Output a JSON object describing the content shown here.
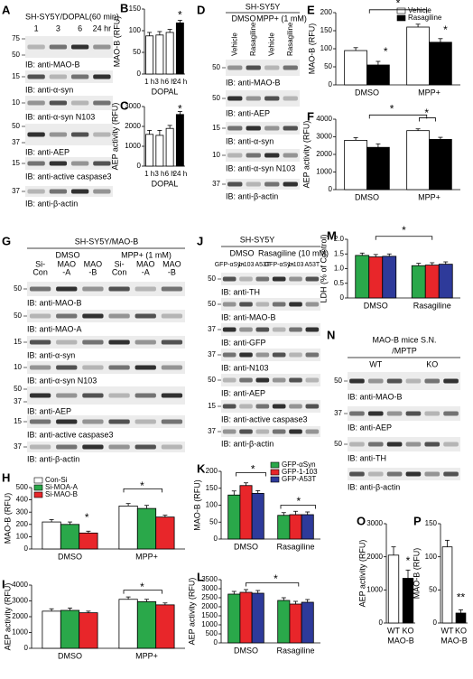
{
  "blots": [
    {
      "panel": "A",
      "header": [
        "SH-SY5Y/DOPAL(60 min)"
      ],
      "lanes": [
        "1",
        "3",
        "6",
        "24 hr"
      ],
      "rows": [
        {
          "markers": [
            75,
            50
          ],
          "label": "IB: anti-MAO-B"
        },
        {
          "markers": [
            15
          ],
          "label": "IB: anti-α-syn"
        },
        {
          "markers": [
            10
          ],
          "label": "IB: anti-α-syn N103"
        },
        {
          "markers": [
            50,
            37
          ],
          "label": "IB: anti-AEP"
        },
        {
          "markers": [
            15
          ],
          "label": "IB: anti-active caspase3"
        },
        {
          "markers": [
            37
          ],
          "label": "IB: anti-β-actin"
        }
      ]
    },
    {
      "panel": "D",
      "header": [
        "SH-SY5Y",
        "DMSO",
        "MPP+ (1 mM)"
      ],
      "lanes": [
        "Vehicle",
        "Rasagiline",
        "Vehicle",
        "Rasagiline"
      ],
      "rows": [
        {
          "markers": [
            50
          ],
          "label": "IB: anti-MAO-B"
        },
        {
          "markers": [
            50
          ],
          "label": "IB: anti-AEP"
        },
        {
          "markers": [
            15
          ],
          "label": "IB: anti-α-syn"
        },
        {
          "markers": [
            10
          ],
          "label": "IB: anti-α-syn N103"
        },
        {
          "markers": [
            37
          ],
          "label": "IB: anti-β-actin"
        }
      ]
    },
    {
      "panel": "G",
      "header": [
        "SH-SY5Y/MAO-B",
        "DMSO",
        "MPP+ (1 mM)"
      ],
      "lanes": [
        [
          "Si-",
          "Con"
        ],
        [
          "MAO",
          "-A"
        ],
        [
          "MAO",
          "-B"
        ],
        [
          "Si-",
          "Con"
        ],
        [
          "MAO",
          "-A"
        ],
        [
          "MAO",
          "-B"
        ]
      ],
      "rows": [
        {
          "markers": [
            50
          ],
          "label": "IB: anti-MAO-B"
        },
        {
          "markers": [
            50
          ],
          "label": "IB: anti-MAO-A"
        },
        {
          "markers": [
            15
          ],
          "label": "IB: anti-α-syn"
        },
        {
          "markers": [
            10
          ],
          "label": "IB: anti-α-syn N103"
        },
        {
          "markers": [
            50,
            37
          ],
          "label": "IB: anti-AEP"
        },
        {
          "markers": [
            15
          ],
          "label": "IB: anti-active caspase3"
        },
        {
          "markers": [
            37
          ],
          "label": "IB: anti-β-actin"
        }
      ]
    },
    {
      "panel": "J",
      "header": [
        "SH-SY5Y",
        "DMSO",
        "Rasagiline (10 mM)"
      ],
      "lanes": [
        "GFP-αSyn",
        "1-103",
        "A53T",
        "GFP-αSyn",
        "1-103",
        "A53T"
      ],
      "rows": [
        {
          "markers": [
            50
          ],
          "label": "IB: anti-TH"
        },
        {
          "markers": [
            50
          ],
          "label": "IB: anti-MAO-B"
        },
        {
          "markers": [
            37
          ],
          "label": "IB: anti-GFP"
        },
        {
          "markers": [
            37
          ],
          "label": "IB: anti-N103"
        },
        {
          "markers": [
            50
          ],
          "label": "IB: anti-AEP"
        },
        {
          "markers": [
            15
          ],
          "label": "IB: anti-active caspase3"
        },
        {
          "markers": [
            37
          ],
          "label": "IB: anti-β-actin"
        }
      ]
    },
    {
      "panel": "N",
      "header": [
        "MAO-B mice S.N.",
        "/MPTP"
      ],
      "lanes": [
        "WT",
        "KO"
      ],
      "rows": [
        {
          "markers": [
            50
          ],
          "label": "IB: anti-MAO-B"
        },
        {
          "markers": [
            37
          ],
          "label": "IB: anti-AEP"
        },
        {
          "markers": [
            50
          ],
          "label": "IB: anti-TH"
        },
        {
          "markers": [],
          "label": "IB: anti-β-actin"
        }
      ]
    }
  ],
  "chart_data": [
    {
      "type": "bar",
      "panel": "B",
      "ylabel": "MAO-B (RFU)",
      "xlabel": "DOPAL",
      "categories": [
        "1 h",
        "3 h",
        "6 h",
        "24 h"
      ],
      "values": [
        88,
        90,
        96,
        118
      ],
      "errors": [
        8,
        8,
        7,
        6
      ],
      "colors": [
        "#ffffff",
        "#ffffff",
        "#ffffff",
        "#000000"
      ],
      "ylim": [
        0,
        150
      ],
      "yticks": [
        0,
        50,
        100,
        150
      ],
      "annotations": [
        "*"
      ]
    },
    {
      "type": "bar",
      "panel": "C",
      "ylabel": "AEP activity (RFU)",
      "xlabel": "DOPAL",
      "categories": [
        "1 h",
        "3 h",
        "6 h",
        "24 h"
      ],
      "values": [
        1600,
        1550,
        1900,
        2600
      ],
      "errors": [
        200,
        250,
        150,
        150
      ],
      "colors": [
        "#ffffff",
        "#ffffff",
        "#ffffff",
        "#000000"
      ],
      "ylim": [
        0,
        3000
      ],
      "yticks": [
        0,
        1000,
        2000,
        3000
      ],
      "annotations": [
        "*"
      ]
    },
    {
      "type": "bar",
      "panel": "E",
      "ylabel": "MAO-B (RFU)",
      "categories": [
        "DMSO",
        "MPP+"
      ],
      "series": [
        {
          "name": "Vehicle",
          "color": "#ffffff",
          "values": [
            95,
            160
          ],
          "errors": [
            8,
            8
          ]
        },
        {
          "name": "Rasagiline",
          "color": "#000000",
          "values": [
            55,
            118
          ],
          "errors": [
            10,
            10
          ]
        }
      ],
      "ylim": [
        0,
        200
      ],
      "yticks": [
        0,
        50,
        100,
        150,
        200
      ],
      "legend": "upper right",
      "annotations": [
        "*",
        "*",
        "*"
      ]
    },
    {
      "type": "bar",
      "panel": "F",
      "ylabel": "AEP activity (RFU)",
      "categories": [
        "DMSO",
        "MPP+"
      ],
      "series": [
        {
          "color": "#ffffff",
          "values": [
            2800,
            3350
          ],
          "errors": [
            150,
            100
          ]
        },
        {
          "color": "#000000",
          "values": [
            2400,
            2850
          ],
          "errors": [
            200,
            120
          ]
        }
      ],
      "ylim": [
        0,
        4000
      ],
      "yticks": [
        0,
        1000,
        2000,
        3000,
        4000
      ],
      "annotations": [
        "*",
        "*"
      ]
    },
    {
      "type": "bar",
      "panel": "H",
      "ylabel": "MAO-B (RFU)",
      "categories": [
        "DMSO",
        "MPP+"
      ],
      "series": [
        {
          "name": "Con-Si",
          "color": "#ffffff",
          "values": [
            220,
            350
          ],
          "errors": [
            20,
            20
          ]
        },
        {
          "name": "Si-MOA-A",
          "color": "#2aa84a",
          "values": [
            200,
            330
          ],
          "errors": [
            20,
            25
          ]
        },
        {
          "name": "Si-MAO-B",
          "color": "#e8262a",
          "values": [
            130,
            260
          ],
          "errors": [
            15,
            15
          ]
        }
      ],
      "ylim": [
        0,
        500
      ],
      "yticks": [
        0,
        100,
        200,
        300,
        400,
        500
      ],
      "legend": "upper left",
      "annotations": [
        "*",
        "*"
      ]
    },
    {
      "type": "bar",
      "panel": "I",
      "ylabel": "AEP activity (RFU)",
      "categories": [
        "DMSO",
        "MPP+"
      ],
      "series": [
        {
          "color": "#ffffff",
          "values": [
            2350,
            3100
          ],
          "errors": [
            150,
            150
          ]
        },
        {
          "color": "#2aa84a",
          "values": [
            2400,
            2950
          ],
          "errors": [
            150,
            150
          ]
        },
        {
          "color": "#e8262a",
          "values": [
            2250,
            2750
          ],
          "errors": [
            100,
            120
          ]
        }
      ],
      "ylim": [
        0,
        4000
      ],
      "yticks": [
        0,
        1000,
        2000,
        3000,
        4000
      ],
      "annotations": [
        "*"
      ]
    },
    {
      "type": "bar",
      "panel": "K",
      "ylabel": "MAO-B (RFU)",
      "categories": [
        "DMSO",
        "Rasagiline"
      ],
      "series": [
        {
          "name": "GFP-αSyn",
          "color": "#2aa84a",
          "values": [
            130,
            70
          ],
          "errors": [
            12,
            8
          ]
        },
        {
          "name": "GFP-1-103",
          "color": "#e8262a",
          "values": [
            158,
            72
          ],
          "errors": [
            8,
            10
          ]
        },
        {
          "name": "GFP-A53T",
          "color": "#2e3a9a",
          "values": [
            135,
            72
          ],
          "errors": [
            8,
            8
          ]
        }
      ],
      "ylim": [
        0,
        200
      ],
      "yticks": [
        0,
        50,
        100,
        150,
        200
      ],
      "legend": "upper right",
      "annotations": [
        "*",
        "*"
      ]
    },
    {
      "type": "bar",
      "panel": "L",
      "ylabel": "AEP activity (RFU)",
      "categories": [
        "DMSO",
        "Rasagiline"
      ],
      "series": [
        {
          "color": "#2aa84a",
          "values": [
            2700,
            2350
          ],
          "errors": [
            150,
            150
          ]
        },
        {
          "color": "#e8262a",
          "values": [
            2800,
            2150
          ],
          "errors": [
            150,
            150
          ]
        },
        {
          "color": "#2e3a9a",
          "values": [
            2750,
            2250
          ],
          "errors": [
            150,
            150
          ]
        }
      ],
      "ylim": [
        0,
        3500
      ],
      "yticks": [
        0,
        500,
        1000,
        1500,
        2000,
        2500,
        3000,
        3500
      ],
      "annotations": [
        "*"
      ]
    },
    {
      "type": "bar",
      "panel": "M",
      "ylabel": "LDH (% of Control)",
      "categories": [
        "DMSO",
        "Rasagiline"
      ],
      "series": [
        {
          "color": "#2aa84a",
          "values": [
            1.45,
            1.1
          ],
          "errors": [
            0.08,
            0.08
          ]
        },
        {
          "color": "#e8262a",
          "values": [
            1.4,
            1.12
          ],
          "errors": [
            0.08,
            0.08
          ]
        },
        {
          "color": "#2e3a9a",
          "values": [
            1.42,
            1.15
          ],
          "errors": [
            0.08,
            0.08
          ]
        }
      ],
      "ylim": [
        0,
        2
      ],
      "yticks": [
        0,
        0.5,
        {
          "value": 1,
          "label": "1.0"
        },
        1.5,
        {
          "value": 2,
          "label": "2.0"
        }
      ],
      "annotations": [
        "*"
      ]
    },
    {
      "type": "bar",
      "panel": "O",
      "ylabel": "AEP activity (RFU)",
      "xlabel": "MAO-B",
      "categories": [
        "WT",
        "KO"
      ],
      "values": [
        2050,
        1350
      ],
      "errors": [
        250,
        250
      ],
      "colors": [
        "#ffffff",
        "#000000"
      ],
      "ylim": [
        0,
        3000
      ],
      "yticks": [
        0,
        1000,
        2000,
        3000
      ],
      "annotations": [
        "*"
      ]
    },
    {
      "type": "bar",
      "panel": "P",
      "ylabel": "MAO-B (RFU)",
      "xlabel": "MAO-B",
      "categories": [
        "WT",
        "KO"
      ],
      "values": [
        115,
        15
      ],
      "errors": [
        10,
        5
      ],
      "colors": [
        "#ffffff",
        "#000000"
      ],
      "ylim": [
        0,
        150
      ],
      "yticks": [
        0,
        50,
        100,
        150
      ],
      "annotations": [
        "**"
      ]
    }
  ]
}
